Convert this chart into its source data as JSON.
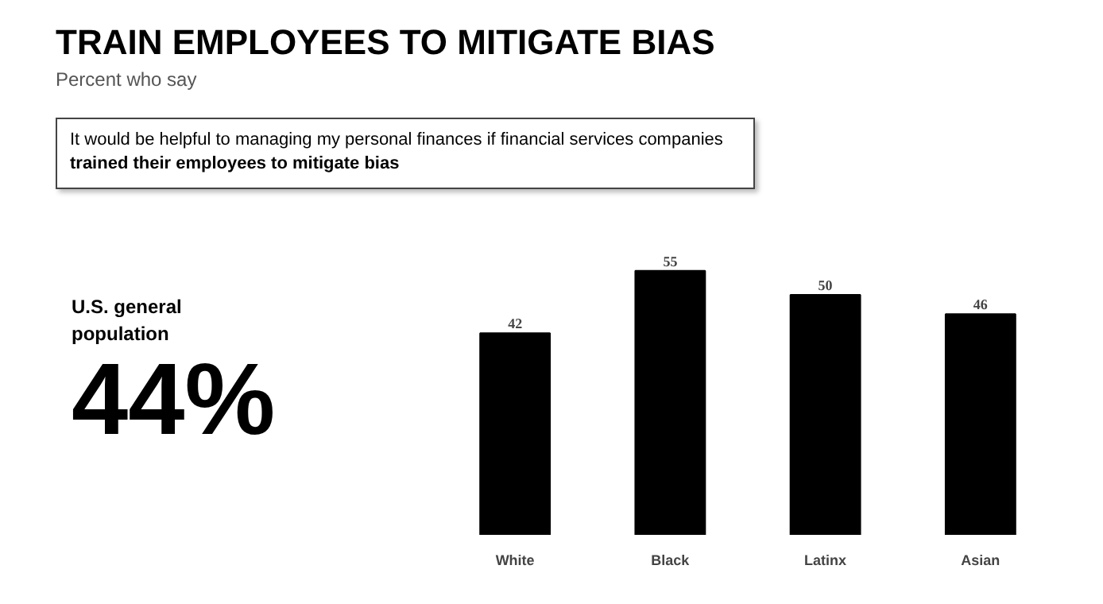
{
  "chart_data": {
    "type": "bar",
    "title": "TRAIN EMPLOYEES TO MITIGATE BIAS",
    "subtitle": "Percent who say",
    "annotations": [
      "It would be helpful to managing my personal finances if financial services companies",
      "trained their employees to mitigate bias",
      "U.S. general population",
      "44%"
    ],
    "categories": [
      "White",
      "Black",
      "Latinx",
      "Asian"
    ],
    "values": [
      42,
      55,
      50,
      46
    ],
    "color": "#000000",
    "data_labels": true,
    "grid": false
  }
}
